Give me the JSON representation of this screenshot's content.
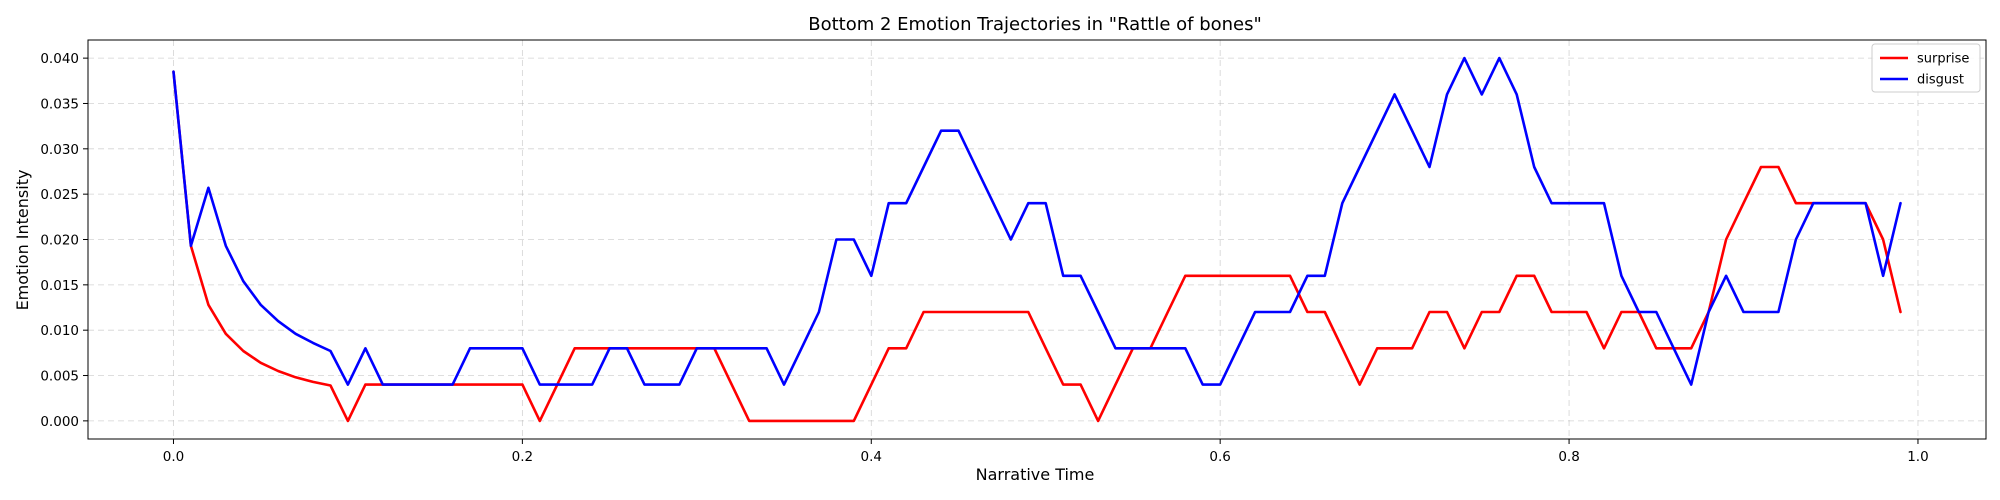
{
  "chart_data": {
    "type": "line",
    "title": "Bottom 2 Emotion Trajectories in \"Rattle of bones\"",
    "xlabel": "Narrative Time",
    "ylabel": "Emotion Intensity",
    "xlim": [
      -0.049,
      1.039
    ],
    "ylim": [
      -0.002,
      0.042
    ],
    "xticks": [
      "0.0",
      "0.2",
      "0.4",
      "0.6",
      "0.8",
      "1.0"
    ],
    "yticks": [
      "0.000",
      "0.005",
      "0.010",
      "0.015",
      "0.020",
      "0.025",
      "0.030",
      "0.035",
      "0.040"
    ],
    "grid": true,
    "legend_position": "top-right",
    "x": [
      0.0,
      0.01,
      0.02,
      0.03,
      0.04,
      0.05,
      0.06,
      0.07,
      0.08,
      0.09,
      0.1,
      0.11,
      0.12,
      0.13,
      0.14,
      0.15,
      0.16,
      0.17,
      0.18,
      0.19,
      0.2,
      0.21,
      0.22,
      0.23,
      0.24,
      0.25,
      0.26,
      0.27,
      0.28,
      0.29,
      0.3,
      0.31,
      0.32,
      0.33,
      0.34,
      0.35,
      0.36,
      0.37,
      0.38,
      0.39,
      0.4,
      0.41,
      0.42,
      0.43,
      0.44,
      0.45,
      0.46,
      0.47,
      0.48,
      0.49,
      0.5,
      0.51,
      0.52,
      0.53,
      0.54,
      0.55,
      0.56,
      0.57,
      0.58,
      0.59,
      0.6,
      0.61,
      0.62,
      0.63,
      0.64,
      0.65,
      0.66,
      0.67,
      0.68,
      0.69,
      0.7,
      0.71,
      0.72,
      0.73,
      0.74,
      0.75,
      0.76,
      0.77,
      0.78,
      0.79,
      0.8,
      0.81,
      0.82,
      0.83,
      0.84,
      0.85,
      0.86,
      0.87,
      0.88,
      0.89,
      0.9,
      0.91,
      0.92,
      0.93,
      0.94,
      0.95,
      0.96,
      0.97,
      0.98,
      0.99
    ],
    "series": [
      {
        "name": "surprise",
        "color": "#ff0000",
        "values": [
          0.0385,
          0.0193,
          0.0128,
          0.0096,
          0.0077,
          0.0064,
          0.0055,
          0.0048,
          0.0043,
          0.0039,
          0.0,
          0.004,
          0.004,
          0.004,
          0.004,
          0.004,
          0.004,
          0.004,
          0.004,
          0.004,
          0.004,
          0.0,
          0.004,
          0.008,
          0.008,
          0.008,
          0.008,
          0.008,
          0.008,
          0.008,
          0.008,
          0.008,
          0.004,
          0.0,
          0.0,
          0.0,
          0.0,
          0.0,
          0.0,
          0.0,
          0.004,
          0.008,
          0.008,
          0.012,
          0.012,
          0.012,
          0.012,
          0.012,
          0.012,
          0.012,
          0.008,
          0.004,
          0.004,
          0.0,
          0.004,
          0.008,
          0.008,
          0.012,
          0.016,
          0.016,
          0.016,
          0.016,
          0.016,
          0.016,
          0.016,
          0.012,
          0.012,
          0.008,
          0.004,
          0.008,
          0.008,
          0.008,
          0.012,
          0.012,
          0.008,
          0.012,
          0.012,
          0.016,
          0.016,
          0.012,
          0.012,
          0.012,
          0.008,
          0.012,
          0.012,
          0.008,
          0.008,
          0.008,
          0.012,
          0.02,
          0.024,
          0.028,
          0.028,
          0.024,
          0.024,
          0.024,
          0.024,
          0.024,
          0.02,
          0.012
        ]
      },
      {
        "name": "disgust",
        "color": "#0000ff",
        "values": [
          0.0385,
          0.0193,
          0.0257,
          0.0193,
          0.0154,
          0.0128,
          0.011,
          0.0096,
          0.0086,
          0.0077,
          0.004,
          0.008,
          0.004,
          0.004,
          0.004,
          0.004,
          0.004,
          0.008,
          0.008,
          0.008,
          0.008,
          0.004,
          0.004,
          0.004,
          0.004,
          0.008,
          0.008,
          0.004,
          0.004,
          0.004,
          0.008,
          0.008,
          0.008,
          0.008,
          0.008,
          0.004,
          0.008,
          0.012,
          0.02,
          0.02,
          0.016,
          0.024,
          0.024,
          0.028,
          0.032,
          0.032,
          0.028,
          0.024,
          0.02,
          0.024,
          0.024,
          0.016,
          0.016,
          0.012,
          0.008,
          0.008,
          0.008,
          0.008,
          0.008,
          0.004,
          0.004,
          0.008,
          0.012,
          0.012,
          0.012,
          0.016,
          0.016,
          0.024,
          0.028,
          0.032,
          0.036,
          0.032,
          0.028,
          0.036,
          0.04,
          0.036,
          0.04,
          0.036,
          0.028,
          0.024,
          0.024,
          0.024,
          0.024,
          0.016,
          0.012,
          0.012,
          0.008,
          0.004,
          0.012,
          0.016,
          0.012,
          0.012,
          0.012,
          0.02,
          0.024,
          0.024,
          0.024,
          0.024,
          0.016,
          0.024
        ]
      }
    ]
  }
}
